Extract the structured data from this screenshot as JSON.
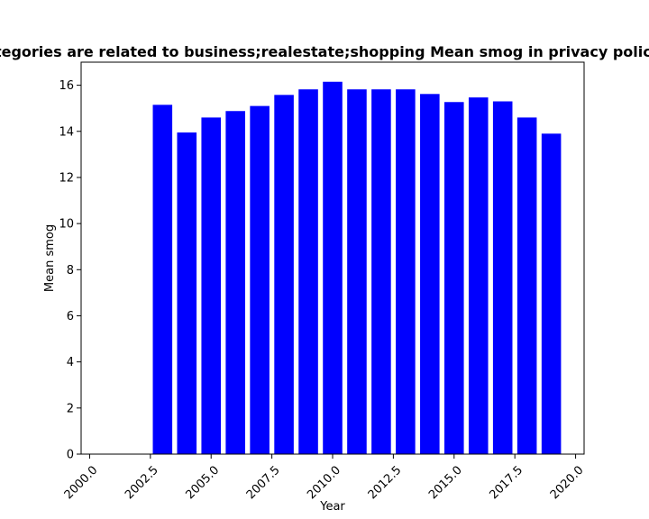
{
  "chart_data": {
    "type": "bar",
    "title": "Categories are related to business;realestate;shopping Mean smog in privacy policies",
    "xlabel": "Year",
    "ylabel": "Mean smog",
    "xlim": [
      1999.65,
      2020.35
    ],
    "ylim": [
      0,
      17
    ],
    "x_ticks": [
      2000.0,
      2002.5,
      2005.0,
      2007.5,
      2010.0,
      2012.5,
      2015.0,
      2017.5,
      2020.0
    ],
    "x_tick_labels": [
      "2000.0",
      "2002.5",
      "2005.0",
      "2007.5",
      "2010.0",
      "2012.5",
      "2015.0",
      "2017.5",
      "2020.0"
    ],
    "y_ticks": [
      0,
      2,
      4,
      6,
      8,
      10,
      12,
      14,
      16
    ],
    "y_tick_labels": [
      "0",
      "2",
      "4",
      "6",
      "8",
      "10",
      "12",
      "14",
      "16"
    ],
    "bar_color": "#0000ff",
    "bar_width": 0.8,
    "grid": false,
    "x": [
      2003,
      2004,
      2005,
      2006,
      2007,
      2008,
      2009,
      2010,
      2011,
      2012,
      2013,
      2014,
      2015,
      2016,
      2017,
      2018,
      2019
    ],
    "values": [
      15.15,
      13.95,
      14.6,
      14.88,
      15.1,
      15.58,
      15.82,
      16.15,
      15.82,
      15.82,
      15.82,
      15.62,
      15.27,
      15.47,
      15.3,
      14.6,
      13.9
    ]
  }
}
